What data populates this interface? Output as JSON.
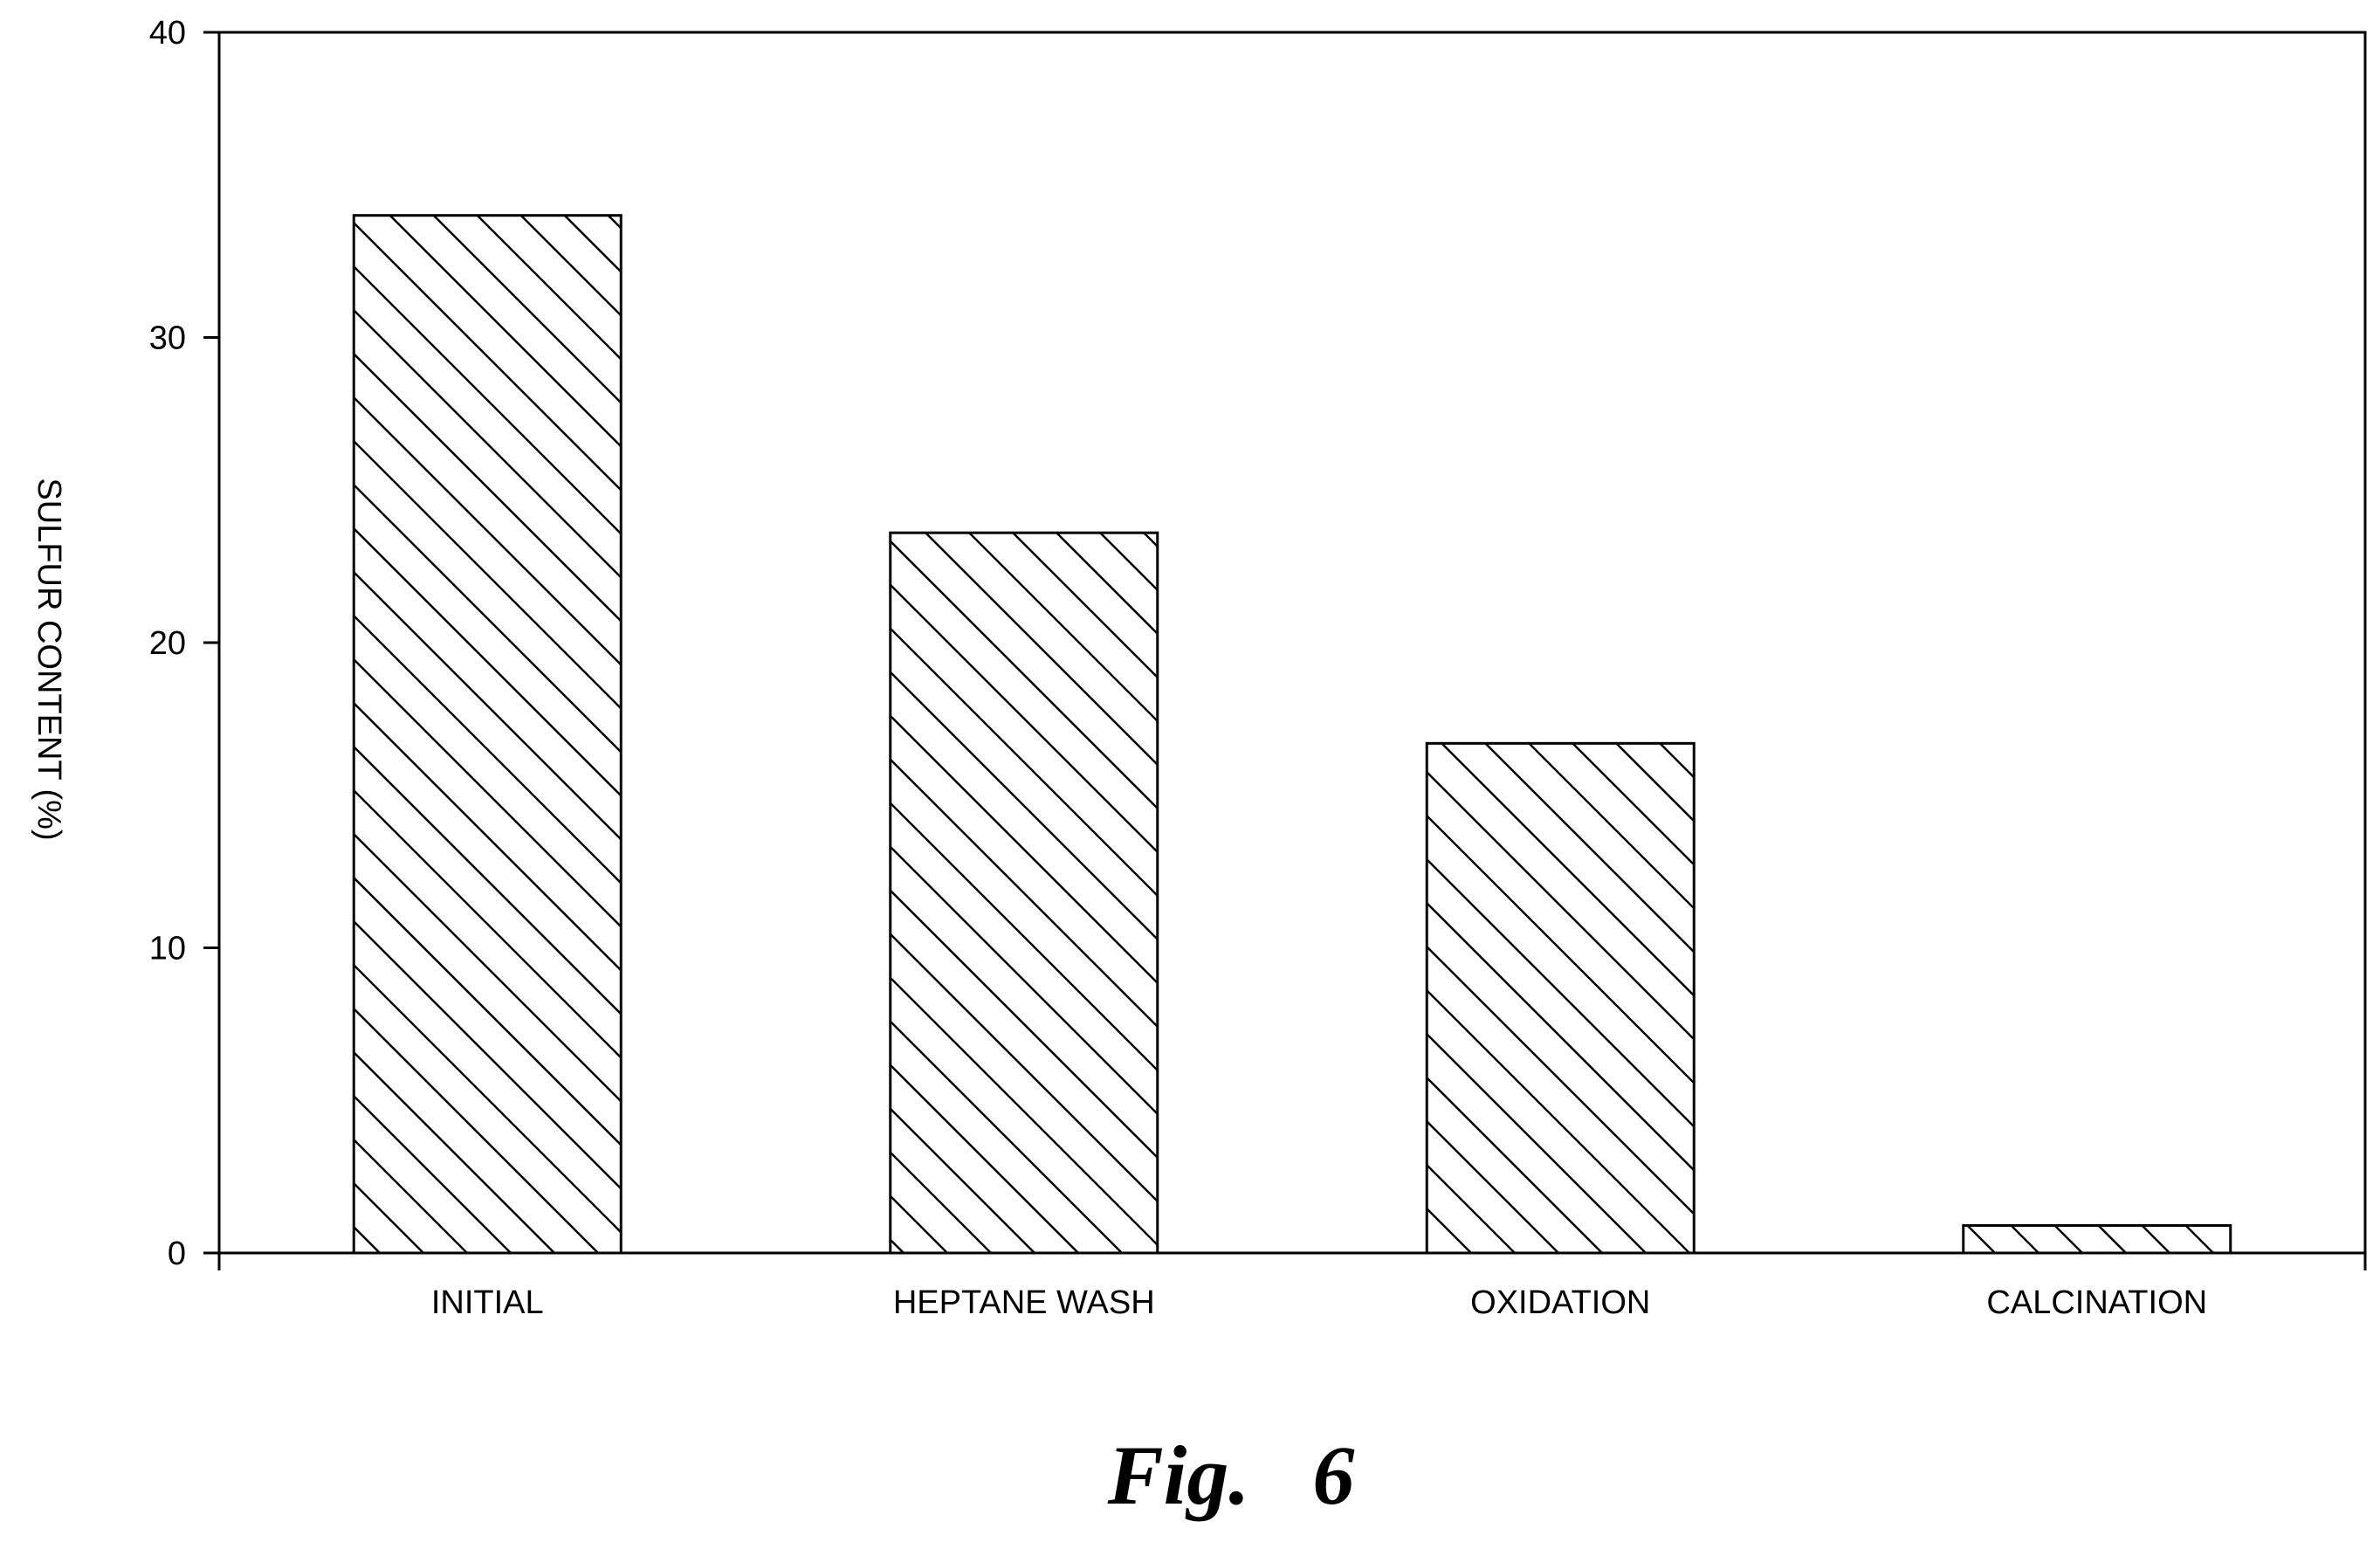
{
  "chart_data": {
    "type": "bar",
    "categories": [
      "INITIAL",
      "HEPTANE WASH",
      "OXIDATION",
      "CALCINATION"
    ],
    "values": [
      34.0,
      23.6,
      16.7,
      0.9
    ],
    "ylabel": "SULFUR CONTENT (%)",
    "xlabel": "",
    "ylim": [
      0,
      40
    ],
    "yticks": [
      0,
      10,
      20,
      30,
      40
    ],
    "grid": false,
    "bar_fill": "diagonal hatch",
    "colors": {
      "bar_stroke": "#000000",
      "hatch": "#000000",
      "background": "#ffffff"
    }
  },
  "figure": {
    "caption": "Fig.   6"
  }
}
